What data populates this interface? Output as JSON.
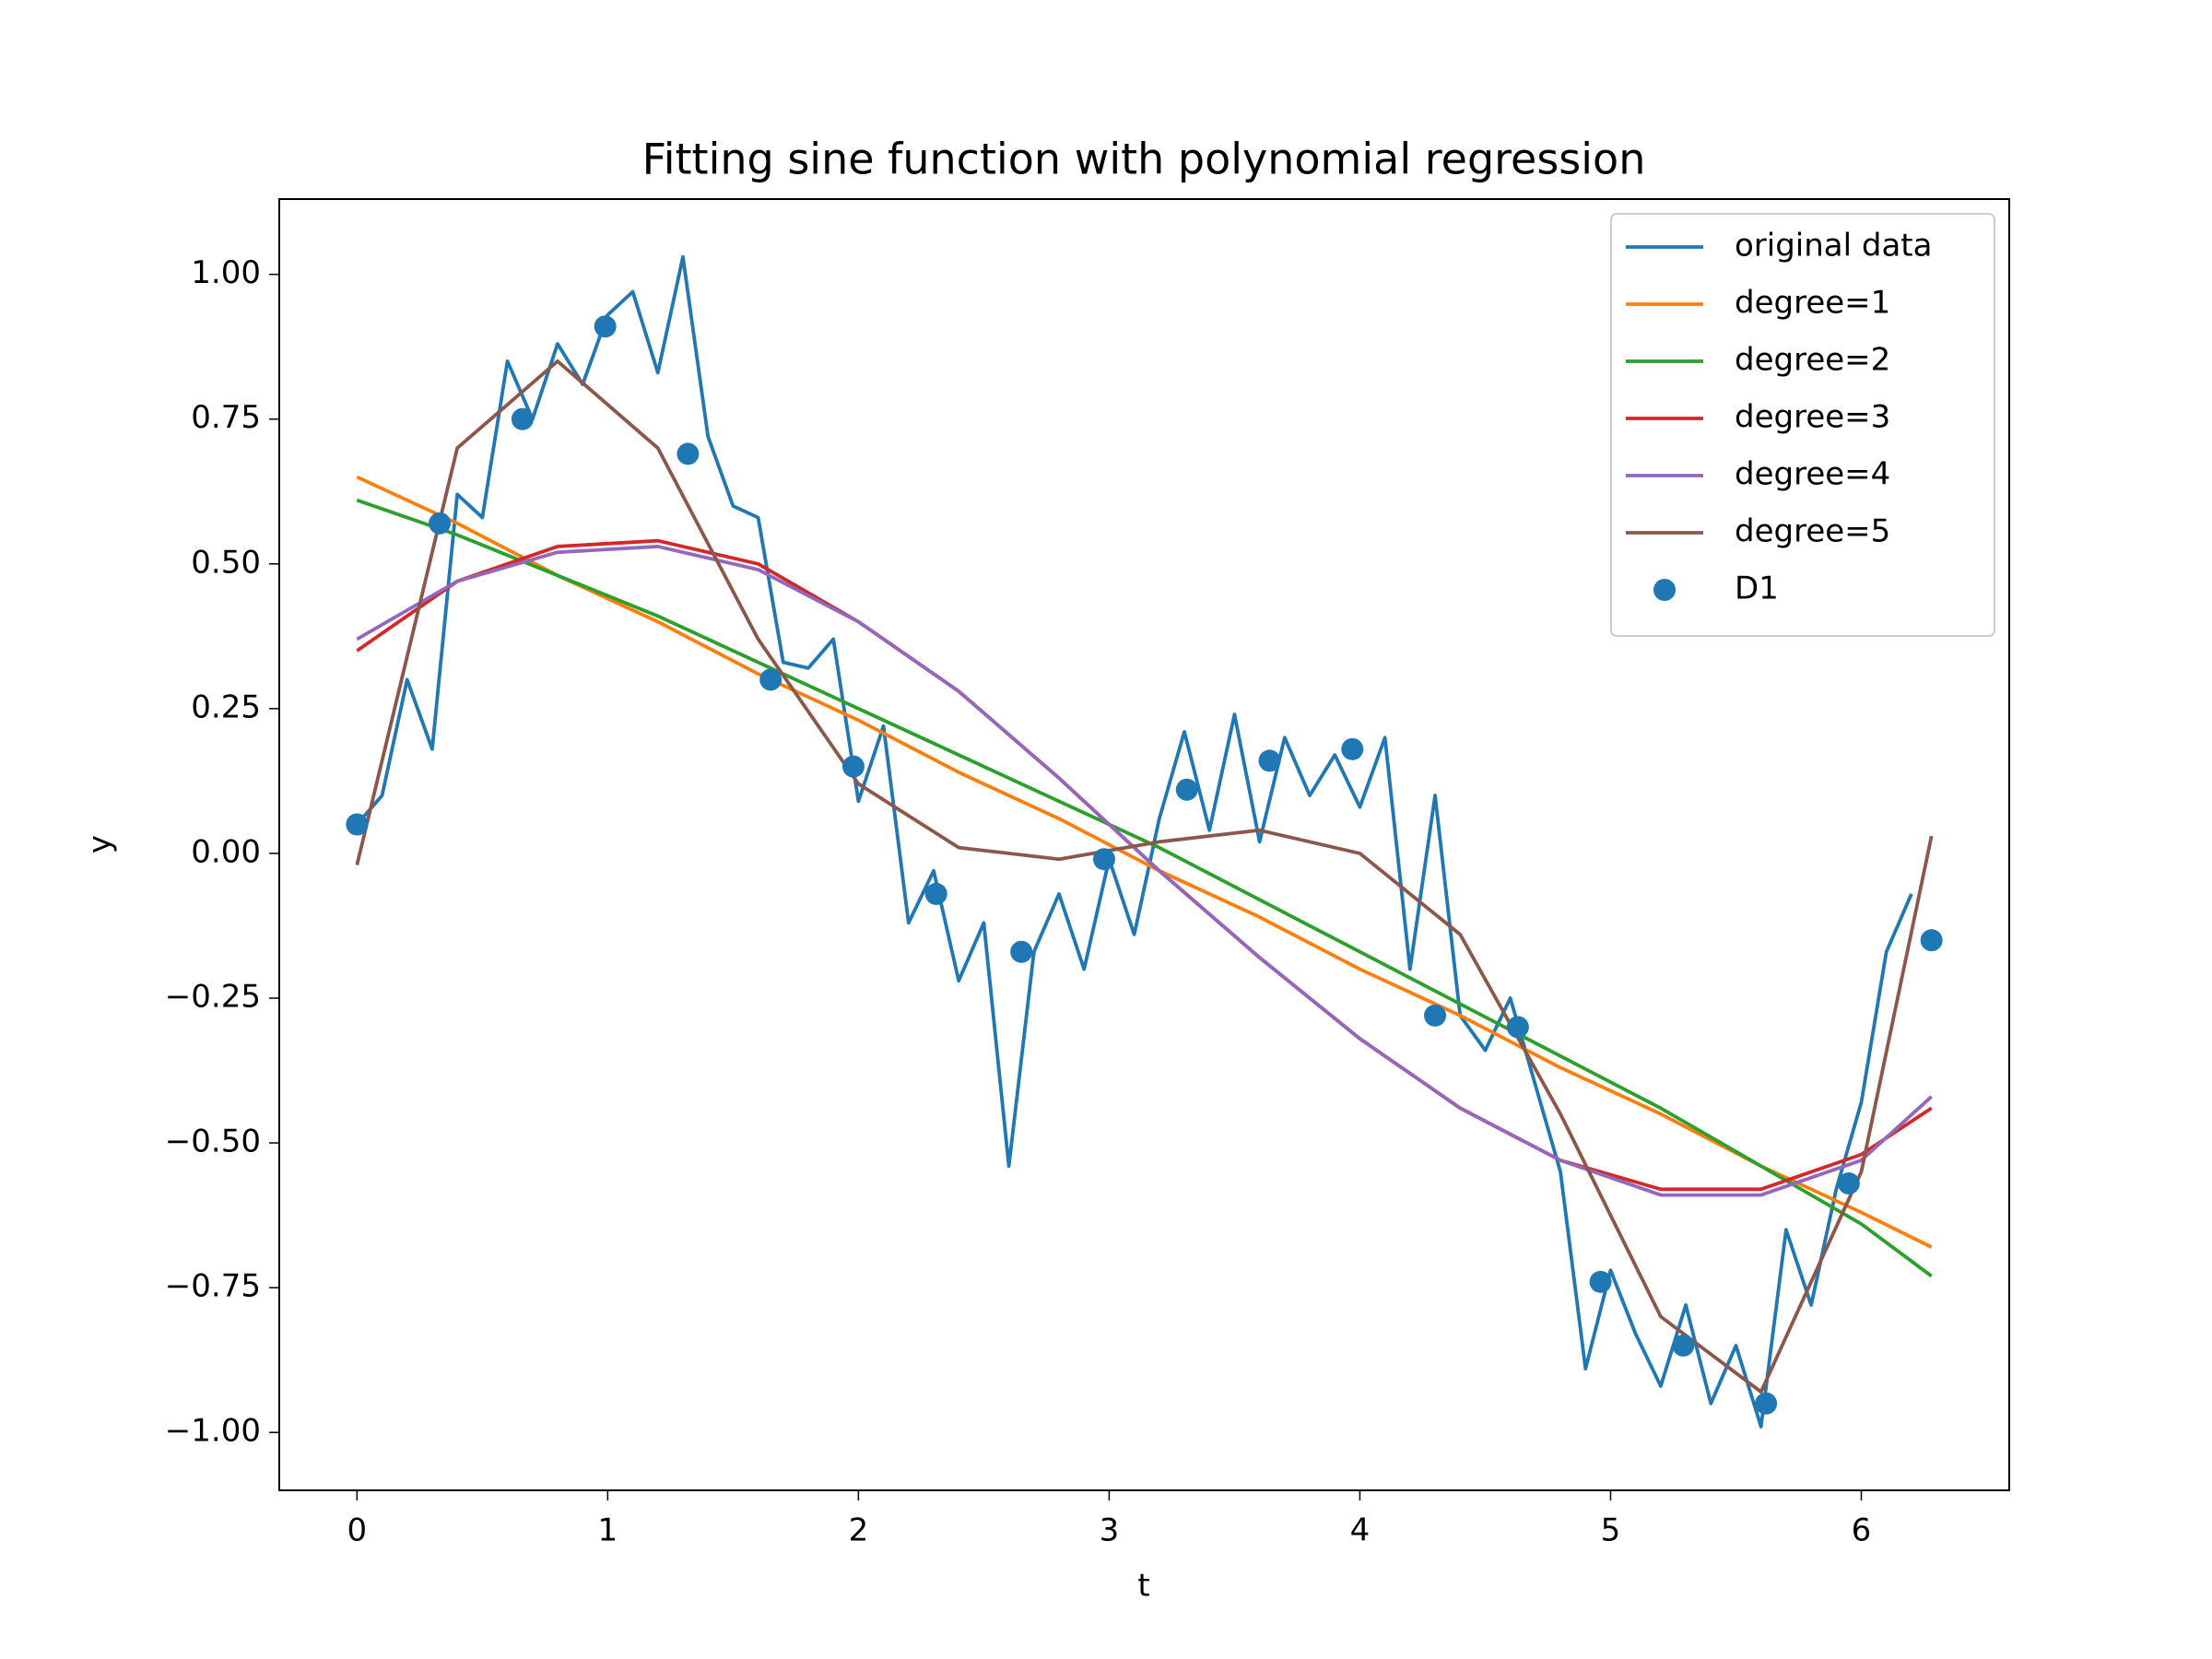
{
  "chart_data": {
    "type": "line",
    "title": "Fitting sine function with polynomial regression",
    "x_label": "t",
    "y_label": "y",
    "xlim": [
      -0.31,
      6.59
    ],
    "ylim": [
      -1.1,
      1.13
    ],
    "xticks": [
      0,
      1,
      2,
      3,
      4,
      5,
      6
    ],
    "yticks": [
      {
        "value": -1,
        "label": "−1.00"
      },
      {
        "value": -0.75,
        "label": "−0.75"
      },
      {
        "value": -0.5,
        "label": "−0.50"
      },
      {
        "value": -0.25,
        "label": "−0.25"
      },
      {
        "value": 0,
        "label": "0.00"
      },
      {
        "value": 0.25,
        "label": "0.25"
      },
      {
        "value": 0.5,
        "label": "0.50"
      },
      {
        "value": 0.75,
        "label": "0.75"
      },
      {
        "value": 1,
        "label": "1.00"
      }
    ],
    "legend": "upper right",
    "series": [
      {
        "name": "original data",
        "type": "line",
        "color": "#1f77b4",
        "x": [
          0.0,
          0.1,
          0.2,
          0.3,
          0.4,
          0.5,
          0.6,
          0.7,
          0.8,
          0.9,
          1.0,
          1.1,
          1.2,
          1.3,
          1.4,
          1.5,
          1.6,
          1.7,
          1.8,
          1.9,
          2.0,
          2.1,
          2.2,
          2.3,
          2.4,
          2.5,
          2.6,
          2.7,
          2.8,
          2.9,
          3.0,
          3.1,
          3.2,
          3.3,
          3.4,
          3.5,
          3.6,
          3.7,
          3.8,
          3.9,
          4.0,
          4.1,
          4.2,
          4.3,
          4.4,
          4.5,
          4.6,
          4.7,
          4.8,
          4.9,
          5.0,
          5.1,
          5.2,
          5.3,
          5.4,
          5.5,
          5.6,
          5.7,
          5.8,
          5.9,
          6.0,
          6.1,
          6.2
        ],
        "values": [
          0.05,
          0.1,
          0.3,
          0.18,
          0.62,
          0.58,
          0.85,
          0.75,
          0.88,
          0.81,
          0.93,
          0.97,
          0.83,
          1.03,
          0.72,
          0.6,
          0.58,
          0.33,
          0.32,
          0.37,
          0.09,
          0.22,
          -0.12,
          -0.03,
          -0.22,
          -0.12,
          -0.54,
          -0.17,
          -0.07,
          -0.2,
          -0.01,
          -0.14,
          0.06,
          0.21,
          0.04,
          0.24,
          0.02,
          0.2,
          0.1,
          0.17,
          0.08,
          0.2,
          -0.2,
          0.1,
          -0.28,
          -0.34,
          -0.25,
          -0.4,
          -0.55,
          -0.89,
          -0.72,
          -0.83,
          -0.92,
          -0.78,
          -0.95,
          -0.85,
          -0.99,
          -0.65,
          -0.78,
          -0.58,
          -0.43,
          -0.17,
          -0.07
        ]
      },
      {
        "name": "degree=1",
        "type": "line",
        "color": "#ff7f0e",
        "x": [
          0,
          0.4,
          0.8,
          1.2,
          1.6,
          2.0,
          2.4,
          2.8,
          3.2,
          3.6,
          4.0,
          4.4,
          4.8,
          5.2,
          5.6,
          6.0,
          6.28
        ],
        "values": [
          0.65,
          0.57,
          0.48,
          0.4,
          0.31,
          0.23,
          0.14,
          0.06,
          -0.03,
          -0.11,
          -0.2,
          -0.28,
          -0.37,
          -0.45,
          -0.54,
          -0.62,
          -0.68
        ]
      },
      {
        "name": "degree=2",
        "type": "line",
        "color": "#2ca02c",
        "x": [
          0,
          0.4,
          0.8,
          1.2,
          1.6,
          2.0,
          2.4,
          2.8,
          3.2,
          3.6,
          4.0,
          4.4,
          4.8,
          5.2,
          5.6,
          6.0,
          6.28
        ],
        "values": [
          0.61,
          0.55,
          0.48,
          0.41,
          0.33,
          0.25,
          0.17,
          0.09,
          0.01,
          -0.08,
          -0.17,
          -0.26,
          -0.35,
          -0.44,
          -0.54,
          -0.64,
          -0.73
        ]
      },
      {
        "name": "degree=3",
        "type": "line",
        "color": "#d62728",
        "x": [
          0,
          0.4,
          0.8,
          1.2,
          1.6,
          2.0,
          2.4,
          2.8,
          3.2,
          3.6,
          4.0,
          4.4,
          4.8,
          5.2,
          5.6,
          6.0,
          6.28
        ],
        "values": [
          0.35,
          0.47,
          0.53,
          0.54,
          0.5,
          0.4,
          0.28,
          0.13,
          -0.03,
          -0.18,
          -0.32,
          -0.44,
          -0.53,
          -0.58,
          -0.58,
          -0.52,
          -0.44
        ]
      },
      {
        "name": "degree=4",
        "type": "line",
        "color": "#9467bd",
        "x": [
          0,
          0.4,
          0.8,
          1.2,
          1.6,
          2.0,
          2.4,
          2.8,
          3.2,
          3.6,
          4.0,
          4.4,
          4.8,
          5.2,
          5.6,
          6.0,
          6.28
        ],
        "values": [
          0.37,
          0.47,
          0.52,
          0.53,
          0.49,
          0.4,
          0.28,
          0.13,
          -0.03,
          -0.18,
          -0.32,
          -0.44,
          -0.53,
          -0.59,
          -0.59,
          -0.53,
          -0.42
        ]
      },
      {
        "name": "degree=5",
        "type": "line",
        "color": "#8c564b",
        "x": [
          0,
          0.4,
          0.8,
          1.2,
          1.6,
          2.0,
          2.4,
          2.8,
          3.2,
          3.6,
          4.0,
          4.4,
          4.8,
          5.2,
          5.6,
          6.0,
          6.28
        ],
        "values": [
          -0.02,
          0.7,
          0.85,
          0.7,
          0.37,
          0.12,
          0.01,
          -0.01,
          0.02,
          0.04,
          0.0,
          -0.14,
          -0.45,
          -0.8,
          -0.93,
          -0.55,
          0.03
        ]
      },
      {
        "name": "D1",
        "type": "scatter",
        "color": "#1f77b4",
        "x": [
          0,
          0.33,
          0.66,
          0.99,
          1.32,
          1.65,
          1.98,
          2.31,
          2.65,
          2.98,
          3.31,
          3.64,
          3.97,
          4.3,
          4.63,
          4.96,
          5.29,
          5.62,
          5.95,
          6.28
        ],
        "values": [
          0.05,
          0.57,
          0.75,
          0.91,
          0.69,
          0.3,
          0.15,
          -0.07,
          -0.17,
          -0.01,
          0.11,
          0.16,
          0.18,
          -0.28,
          -0.3,
          -0.74,
          -0.85,
          -0.95,
          -0.57,
          -0.15
        ]
      }
    ]
  }
}
